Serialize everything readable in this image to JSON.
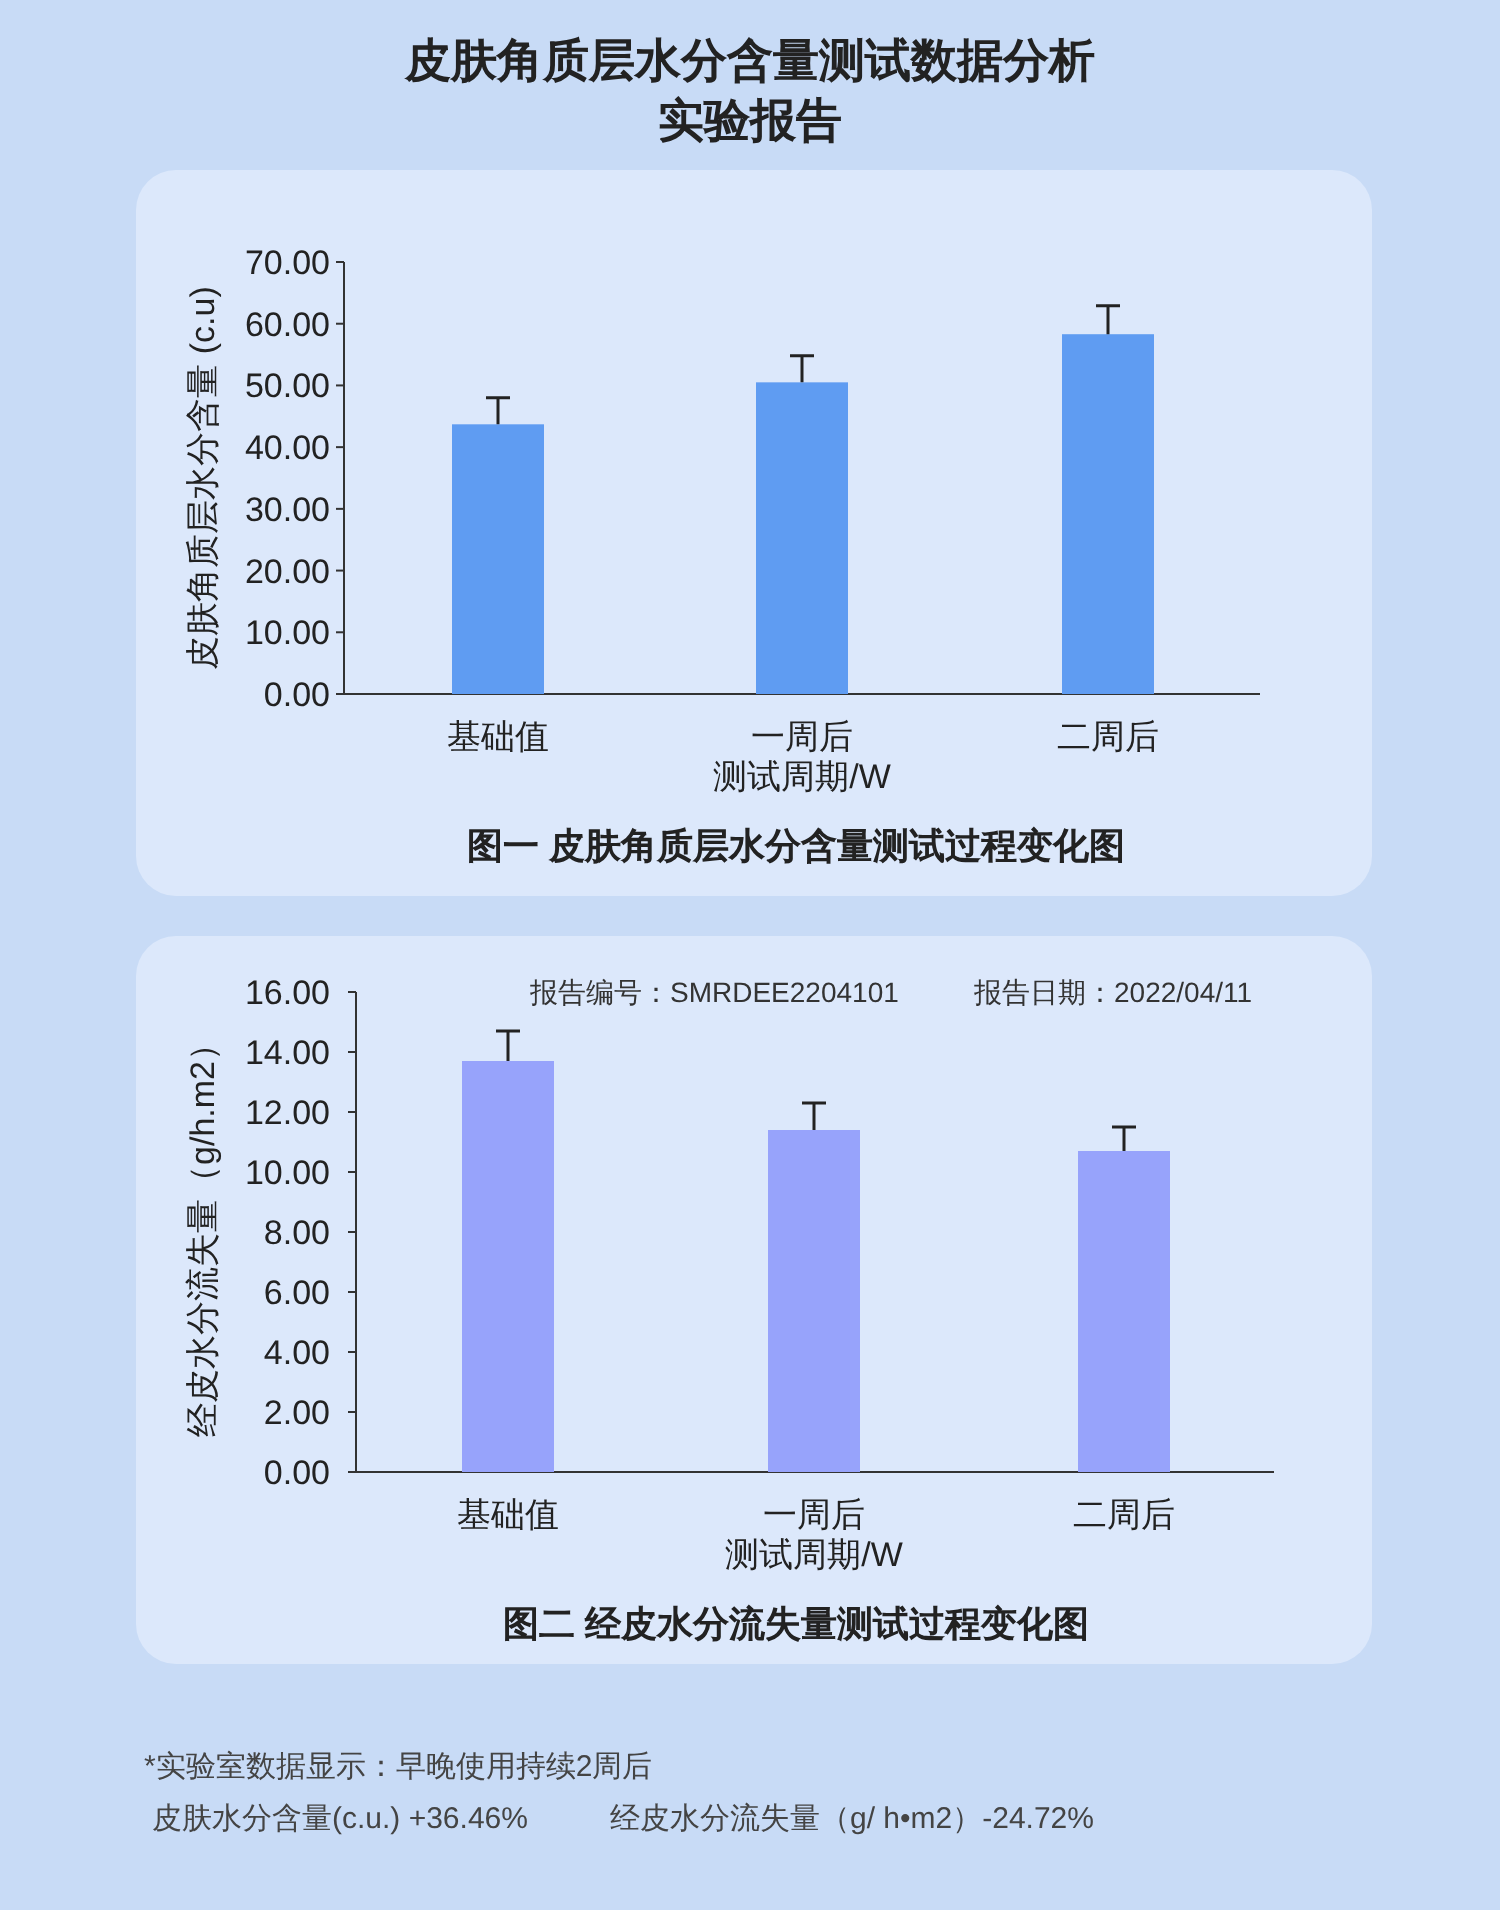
{
  "chart_data": [
    {
      "type": "other",
      "title": "皮肤角质层水分含量测试数据分析",
      "subtitle": "实验报告"
    },
    {
      "type": "bar",
      "title": "图一 皮肤角质层水分含量测试过程变化图",
      "xlabel": "测试周期/W",
      "ylabel": "皮肤角质层水分含量 (c.u)",
      "categories": [
        "基础值",
        "一周后",
        "二周后"
      ],
      "values": [
        43.7,
        50.5,
        58.3
      ],
      "errors": [
        [
          43.7,
          48.0
        ],
        [
          50.5,
          54.8
        ],
        [
          58.3,
          62.9
        ]
      ],
      "color": "#5f9cf2",
      "ylim": [
        0,
        70
      ],
      "yticks": [
        {
          "value": 0,
          "label": "0.00"
        },
        {
          "value": 10,
          "label": "10.00"
        },
        {
          "value": 20,
          "label": "20.00"
        },
        {
          "value": 30,
          "label": "30.00"
        },
        {
          "value": 40,
          "label": "40.00"
        },
        {
          "value": 50,
          "label": "50.00"
        },
        {
          "value": 60,
          "label": "60.00"
        },
        {
          "value": 70,
          "label": "70.00"
        }
      ]
    },
    {
      "type": "bar",
      "title": "图二 经皮水分流失量测试过程变化图",
      "xlabel": "测试周期/W",
      "ylabel": "经皮水分流失量（g/h.m2）",
      "categories": [
        "基础值",
        "一周后",
        "二周后"
      ],
      "values": [
        13.7,
        11.4,
        10.7
      ],
      "errors": [
        [
          13.7,
          14.7
        ],
        [
          11.4,
          12.3
        ],
        [
          10.7,
          11.5
        ]
      ],
      "color": "#97a3fb",
      "ylim": [
        0,
        16
      ],
      "yticks": [
        {
          "value": 0,
          "label": "0.00"
        },
        {
          "value": 2,
          "label": "2.00"
        },
        {
          "value": 4,
          "label": "4.00"
        },
        {
          "value": 6,
          "label": "6.00"
        },
        {
          "value": 8,
          "label": "8.00"
        },
        {
          "value": 10,
          "label": "10.00"
        },
        {
          "value": 12,
          "label": "12.00"
        },
        {
          "value": 14,
          "label": "14.00"
        },
        {
          "value": 16,
          "label": "16.00"
        }
      ],
      "annotations": [
        "报告编号：SMRDEE2204101",
        "报告日期：2022/04/11"
      ]
    },
    {
      "type": "other",
      "annotations": [
        "*实验室数据显示：早晚使用持续2周后",
        "皮肤水分含量(c.u.) +36.46%",
        "经皮水分流失量（g/ h•m2）-24.72%"
      ]
    }
  ]
}
